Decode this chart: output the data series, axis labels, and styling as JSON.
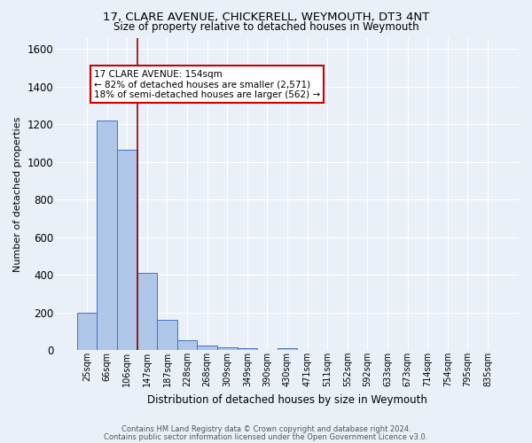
{
  "title1": "17, CLARE AVENUE, CHICKERELL, WEYMOUTH, DT3 4NT",
  "title2": "Size of property relative to detached houses in Weymouth",
  "xlabel": "Distribution of detached houses by size in Weymouth",
  "ylabel": "Number of detached properties",
  "footer1": "Contains HM Land Registry data © Crown copyright and database right 2024.",
  "footer2": "Contains public sector information licensed under the Open Government Licence v3.0.",
  "bar_labels": [
    "25sqm",
    "66sqm",
    "106sqm",
    "147sqm",
    "187sqm",
    "228sqm",
    "268sqm",
    "309sqm",
    "349sqm",
    "390sqm",
    "430sqm",
    "471sqm",
    "511sqm",
    "552sqm",
    "592sqm",
    "633sqm",
    "673sqm",
    "714sqm",
    "754sqm",
    "795sqm",
    "835sqm"
  ],
  "bar_values": [
    200,
    1220,
    1065,
    410,
    163,
    52,
    25,
    14,
    9,
    0,
    12,
    0,
    0,
    0,
    0,
    0,
    0,
    0,
    0,
    0,
    0
  ],
  "bar_color": "#aec6e8",
  "bar_edge_color": "#4472c4",
  "background_color": "#eaf0f8",
  "grid_color": "#ffffff",
  "annotation_text1": "17 CLARE AVENUE: 154sqm",
  "annotation_text2": "← 82% of detached houses are smaller (2,571)",
  "annotation_text3": "18% of semi-detached houses are larger (562) →",
  "annotation_box_color": "#ffffff",
  "annotation_border_color": "#cc0000",
  "ylim": [
    0,
    1660
  ],
  "yticks": [
    0,
    200,
    400,
    600,
    800,
    1000,
    1200,
    1400,
    1600
  ],
  "red_line_index": 3,
  "red_line_color": "#990000",
  "title1_fontsize": 9.5,
  "title2_fontsize": 8.5,
  "footer_fontsize": 6.0,
  "ylabel_fontsize": 8.0,
  "xlabel_fontsize": 8.5
}
